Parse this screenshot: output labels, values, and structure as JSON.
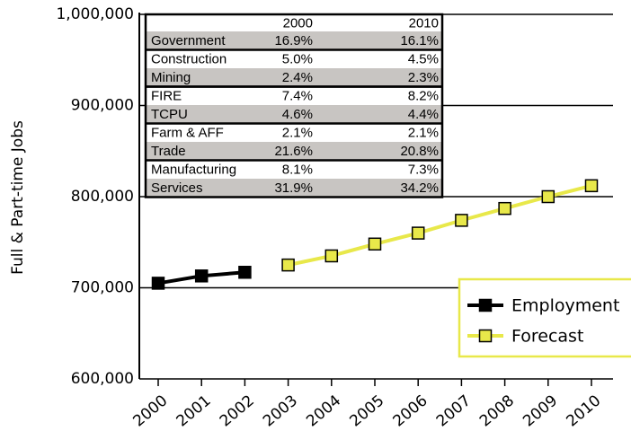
{
  "chart_data": {
    "type": "line",
    "y_label": "Full & Part-time Jobs",
    "categories": [
      "2000",
      "2001",
      "2002",
      "2003",
      "2004",
      "2005",
      "2006",
      "2007",
      "2008",
      "2009",
      "2010"
    ],
    "series": [
      {
        "name": "Employment",
        "color": "#000000",
        "values": [
          705000,
          713000,
          717000,
          null,
          null,
          null,
          null,
          null,
          null,
          null,
          null
        ]
      },
      {
        "name": "Forecast",
        "color": "#e8e84a",
        "values": [
          null,
          null,
          null,
          725000,
          735000,
          748000,
          760000,
          774000,
          787000,
          800000,
          812000
        ]
      }
    ],
    "ylim": [
      600000,
      1000000
    ],
    "yticks": [
      {
        "value": 600000,
        "label": "600,000"
      },
      {
        "value": 700000,
        "label": "700,000"
      },
      {
        "value": 800000,
        "label": "800,000"
      },
      {
        "value": 900000,
        "label": "900,000"
      },
      {
        "value": 1000000,
        "label": "1,000,000"
      }
    ],
    "grid": true,
    "legend": "lower right"
  },
  "table": {
    "columns": [
      "2000",
      "2010"
    ],
    "rows": [
      [
        "Government",
        "16.9%",
        "16.1%"
      ],
      [
        "Construction",
        "5.0%",
        "4.5%"
      ],
      [
        "Mining",
        "2.4%",
        "2.3%"
      ],
      [
        "FIRE",
        "7.4%",
        "8.2%"
      ],
      [
        "TCPU",
        "4.6%",
        "4.4%"
      ],
      [
        "Farm & AFF",
        "2.1%",
        "2.1%"
      ],
      [
        "Trade",
        "21.6%",
        "20.8%"
      ],
      [
        "Manufacturing",
        "8.1%",
        "7.3%"
      ],
      [
        "Services",
        "31.9%",
        "34.2%"
      ]
    ]
  }
}
